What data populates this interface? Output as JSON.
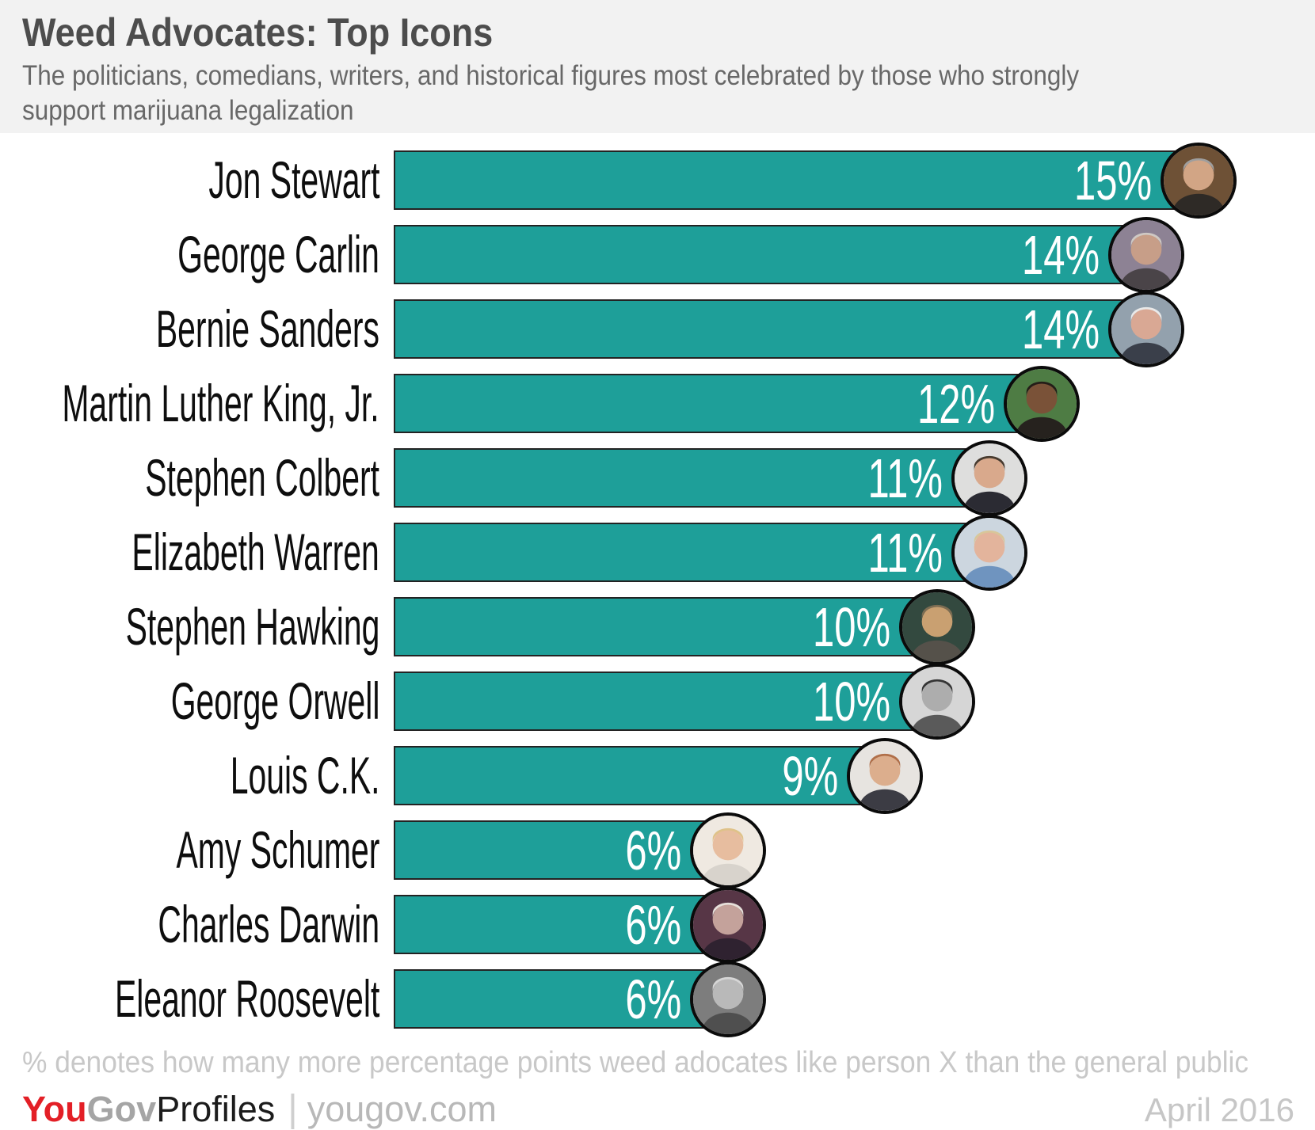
{
  "header": {
    "title": "Weed Advocates: Top Icons",
    "subtitle_lines": [
      "The politicians, comedians, writers, and historical figures most celebrated by those who strongly",
      "support marijuana legalization"
    ]
  },
  "chart_data": {
    "type": "bar",
    "orientation": "horizontal",
    "unit": "percentage points",
    "title": "Weed Advocates: Top Icons",
    "categories": [
      "Jon Stewart",
      "George Carlin",
      "Bernie Sanders",
      "Martin Luther King, Jr.",
      "Stephen Colbert",
      "Elizabeth Warren",
      "Stephen Hawking",
      "George Orwell",
      "Louis C.K.",
      "Amy Schumer",
      "Charles Darwin",
      "Eleanor Roosevelt"
    ],
    "values": [
      15,
      14,
      14,
      12,
      11,
      11,
      10,
      10,
      9,
      6,
      6,
      6
    ],
    "bar_color": "#1e9f99",
    "bar_border_color": "#232323",
    "value_label_color": "#ffffff",
    "legend": "none",
    "gridlines": false,
    "people": [
      {
        "id": "jon-stewart",
        "name": "Jon Stewart",
        "pct": 15,
        "value_label": "15%",
        "avatar": "portrait-jon-stewart",
        "photo_colors": {
          "bg": "#6e5136",
          "skin": "#d2a585",
          "hair": "#9e9e9e",
          "cloth": "#2e2a26"
        }
      },
      {
        "id": "george-carlin",
        "name": "George Carlin",
        "pct": 14,
        "value_label": "14%",
        "avatar": "portrait-george-carlin",
        "photo_colors": {
          "bg": "#8d8294",
          "skin": "#c79e88",
          "hair": "#cfc9c4",
          "cloth": "#4a4448"
        }
      },
      {
        "id": "bernie-sanders",
        "name": "Bernie Sanders",
        "pct": 14,
        "value_label": "14%",
        "avatar": "portrait-bernie-sanders",
        "photo_colors": {
          "bg": "#93a1ad",
          "skin": "#d9a894",
          "hair": "#e9e9e9",
          "cloth": "#3a3f4a"
        }
      },
      {
        "id": "martin-luther-king-jr",
        "name": "Martin Luther King, Jr.",
        "pct": 12,
        "value_label": "12%",
        "avatar": "portrait-martin-luther-king-jr",
        "photo_colors": {
          "bg": "#4e7c44",
          "skin": "#7a5238",
          "hair": "#241d18",
          "cloth": "#26221e"
        }
      },
      {
        "id": "stephen-colbert",
        "name": "Stephen Colbert",
        "pct": 11,
        "value_label": "11%",
        "avatar": "portrait-stephen-colbert",
        "photo_colors": {
          "bg": "#dededd",
          "skin": "#d9a98c",
          "hair": "#473a2e",
          "cloth": "#2b2b33"
        }
      },
      {
        "id": "elizabeth-warren",
        "name": "Elizabeth Warren",
        "pct": 11,
        "value_label": "11%",
        "avatar": "portrait-elizabeth-warren",
        "photo_colors": {
          "bg": "#ccd6df",
          "skin": "#e3b49c",
          "hair": "#d8c69a",
          "cloth": "#6f94bf"
        }
      },
      {
        "id": "stephen-hawking",
        "name": "Stephen Hawking",
        "pct": 10,
        "value_label": "10%",
        "avatar": "portrait-stephen-hawking",
        "photo_colors": {
          "bg": "#33493f",
          "skin": "#c9a071",
          "hair": "#7c6c52",
          "cloth": "#55514a"
        }
      },
      {
        "id": "george-orwell",
        "name": "George Orwell",
        "pct": 10,
        "value_label": "10%",
        "avatar": "portrait-george-orwell",
        "photo_colors": {
          "bg": "#d6d6d6",
          "skin": "#adadad",
          "hair": "#343434",
          "cloth": "#5a5a5a"
        }
      },
      {
        "id": "louis-ck",
        "name": "Louis C.K.",
        "pct": 9,
        "value_label": "9%",
        "avatar": "portrait-louis-ck",
        "photo_colors": {
          "bg": "#e7e4e0",
          "skin": "#dcae8d",
          "hair": "#b06f49",
          "cloth": "#3c3c44"
        }
      },
      {
        "id": "amy-schumer",
        "name": "Amy Schumer",
        "pct": 6,
        "value_label": "6%",
        "avatar": "portrait-amy-schumer",
        "photo_colors": {
          "bg": "#efe9e1",
          "skin": "#e7bd9f",
          "hair": "#dfc289",
          "cloth": "#d8d3cc"
        }
      },
      {
        "id": "charles-darwin",
        "name": "Charles Darwin",
        "pct": 6,
        "value_label": "6%",
        "avatar": "portrait-charles-darwin",
        "photo_colors": {
          "bg": "#573646",
          "skin": "#c4a29b",
          "hair": "#e6e0da",
          "cloth": "#2f2230"
        }
      },
      {
        "id": "eleanor-roosevelt",
        "name": "Eleanor Roosevelt",
        "pct": 6,
        "value_label": "6%",
        "avatar": "portrait-eleanor-roosevelt",
        "photo_colors": {
          "bg": "#7d7d7d",
          "skin": "#b9b9b9",
          "hair": "#d6d6d6",
          "cloth": "#4f4f4f"
        }
      }
    ],
    "footnote": "% denotes how many more percentage points weed adocates like person X than the general public"
  },
  "footer": {
    "brand_you": "You",
    "brand_gov": "Gov",
    "brand_profiles": "Profiles",
    "separator": "|",
    "site": "yougov.com",
    "date": "April 2016",
    "brand_red": "#e31f26"
  }
}
